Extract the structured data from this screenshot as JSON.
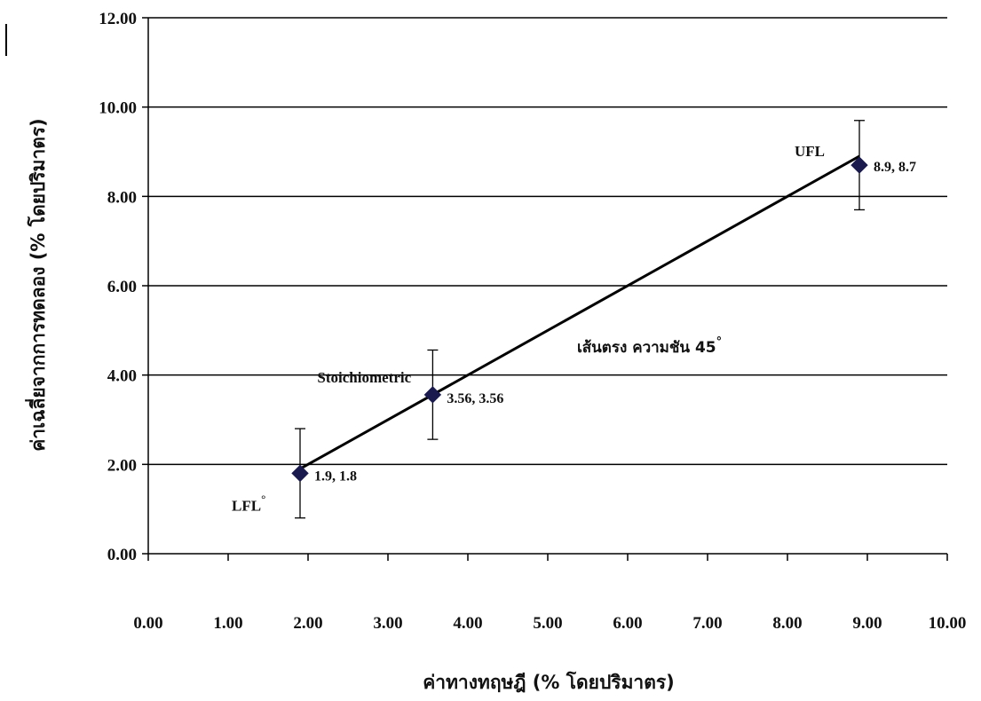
{
  "chart_data": {
    "type": "scatter",
    "xlabel": "ค่าทางทฤษฎี (% โดยปริมาตร)",
    "ylabel": "ค่าเฉลี่ยจากการทดลอง (% โดยปริมาตร)",
    "xlim": [
      0,
      10
    ],
    "ylim": [
      0,
      12
    ],
    "x_ticks": [
      "0.00",
      "1.00",
      "2.00",
      "3.00",
      "4.00",
      "5.00",
      "6.00",
      "7.00",
      "8.00",
      "9.00",
      "10.00"
    ],
    "y_ticks": [
      "0.00",
      "2.00",
      "4.00",
      "6.00",
      "8.00",
      "10.00",
      "12.00"
    ],
    "grid": "horizontal",
    "points": [
      {
        "x": 1.9,
        "y": 1.8,
        "error": 1.0,
        "label": "1.9, 1.8",
        "name": "LFL",
        "name_sup": "°"
      },
      {
        "x": 3.56,
        "y": 3.56,
        "error": 1.0,
        "label": "3.56, 3.56",
        "name": "Stoichiometric",
        "name_sup": ""
      },
      {
        "x": 8.9,
        "y": 8.7,
        "error": 1.0,
        "label": "8.9, 8.7",
        "name": "UFL",
        "name_sup": ""
      }
    ],
    "line": {
      "from": [
        1.9,
        1.9
      ],
      "to": [
        8.9,
        8.9
      ]
    },
    "line_annotation": {
      "text": "เส้นตรง ความชัน 45",
      "sup": "°"
    },
    "colors": {
      "marker": "#1a1a4e",
      "line": "#000000",
      "grid": "#000000"
    }
  }
}
